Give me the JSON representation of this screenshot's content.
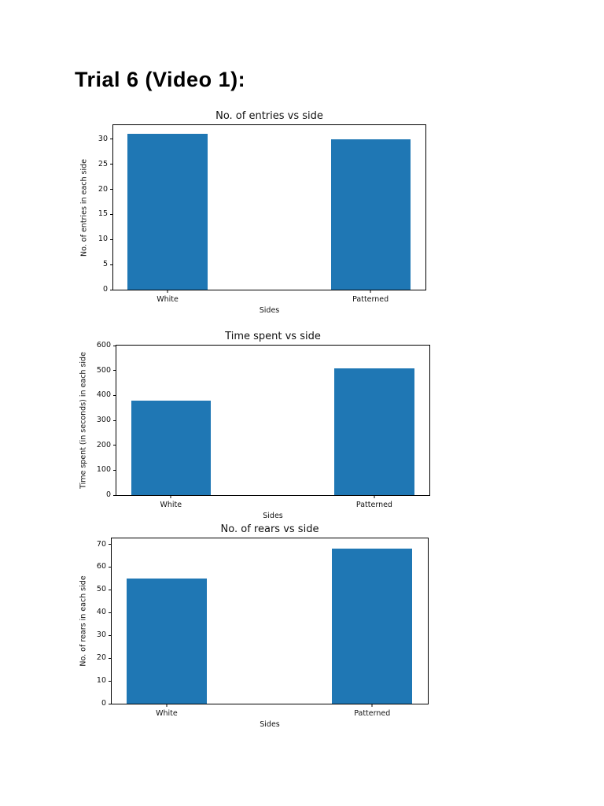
{
  "page": {
    "title": "Trial 6 (Video 1):"
  },
  "colors": {
    "bar_blue": "#1f77b4",
    "text": "#000000",
    "background": "#ffffff"
  },
  "chart_data": [
    {
      "type": "bar",
      "title": "No. of entries vs side",
      "xlabel": "Sides",
      "ylabel": "No. of entries in each side",
      "categories": [
        "White",
        "Patterned"
      ],
      "values": [
        31,
        30
      ],
      "yticks": [
        0,
        5,
        10,
        15,
        20,
        25,
        30
      ],
      "ylim": [
        0,
        32.8
      ],
      "grid": false,
      "legend": false
    },
    {
      "type": "bar",
      "title": "Time spent vs side",
      "xlabel": "Sides",
      "ylabel": "Time spent (in seconds) in each side",
      "categories": [
        "White",
        "Patterned"
      ],
      "values": [
        380,
        510
      ],
      "yticks": [
        0,
        100,
        200,
        300,
        400,
        500,
        600
      ],
      "ylim": [
        0,
        600
      ],
      "grid": false,
      "legend": false
    },
    {
      "type": "bar",
      "title": "No. of rears vs side",
      "xlabel": "Sides",
      "ylabel": "No. of rears in each side",
      "categories": [
        "White",
        "Patterned"
      ],
      "values": [
        55,
        68
      ],
      "yticks": [
        0,
        10,
        20,
        30,
        40,
        50,
        60,
        70
      ],
      "ylim": [
        0,
        72.6
      ],
      "grid": false,
      "legend": false
    }
  ]
}
